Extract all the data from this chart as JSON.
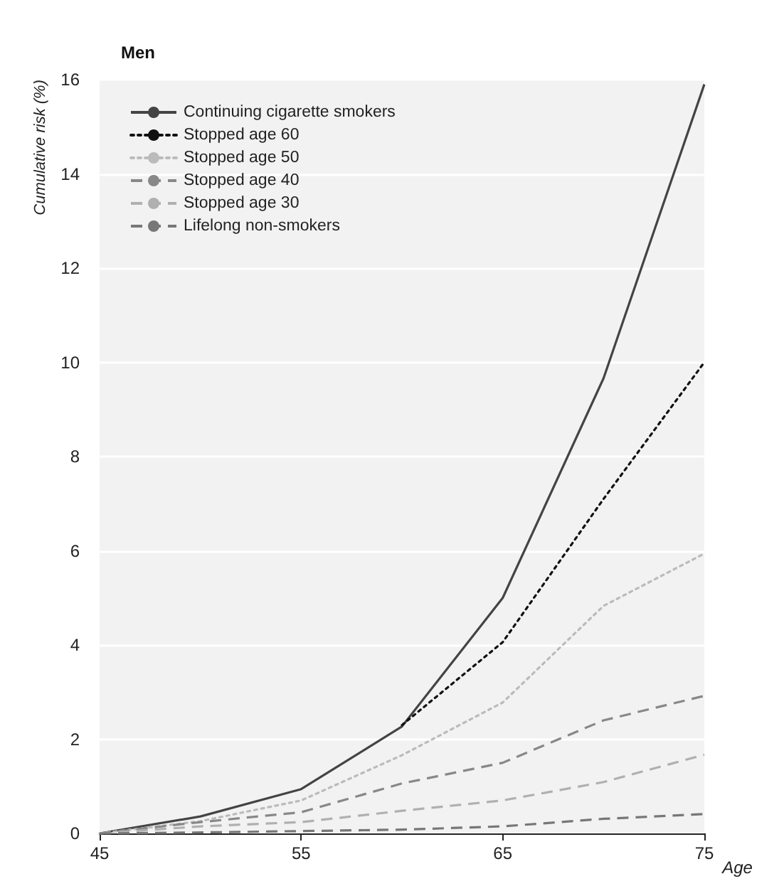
{
  "chart_data": {
    "type": "line",
    "title": "Men",
    "xlabel": "Age",
    "ylabel": "Cumulative risk (%)",
    "x": [
      45,
      50,
      55,
      60,
      65,
      70,
      75
    ],
    "series": [
      {
        "name": "Continuing cigarette smokers",
        "color": "#444444",
        "line_style": "solid",
        "values": [
          0,
          0.36,
          0.94,
          2.27,
          5.0,
          9.66,
          15.9
        ]
      },
      {
        "name": "Stopped age 60",
        "color": "#111111",
        "line_style": "dotted",
        "x": [
          60,
          65,
          70,
          75
        ],
        "values": [
          2.3,
          4.06,
          7.1,
          10.0
        ]
      },
      {
        "name": "Stopped age 50",
        "color": "#bbbbbb",
        "line_style": "dotted",
        "values": [
          0,
          0.26,
          0.7,
          1.66,
          2.78,
          4.83,
          5.94
        ]
      },
      {
        "name": "Stopped age 40",
        "color": "#888888",
        "line_style": "dashed",
        "values": [
          0,
          0.24,
          0.45,
          1.06,
          1.5,
          2.4,
          2.92
        ]
      },
      {
        "name": "Stopped age 30",
        "color": "#b0b0b0",
        "line_style": "dashed",
        "values": [
          0,
          0.15,
          0.24,
          0.48,
          0.7,
          1.09,
          1.67
        ]
      },
      {
        "name": "Lifelong non-smokers",
        "color": "#777777",
        "line_style": "dashed",
        "values": [
          0,
          0.02,
          0.05,
          0.08,
          0.15,
          0.31,
          0.41
        ]
      }
    ],
    "xlim": [
      45,
      75
    ],
    "xticks": [
      45,
      55,
      65,
      75
    ],
    "ylim": [
      0,
      16
    ],
    "yticks": [
      0,
      2,
      4,
      6,
      8,
      10,
      12,
      14,
      16
    ],
    "grid": "y",
    "legend": "top left",
    "marker": "none"
  }
}
